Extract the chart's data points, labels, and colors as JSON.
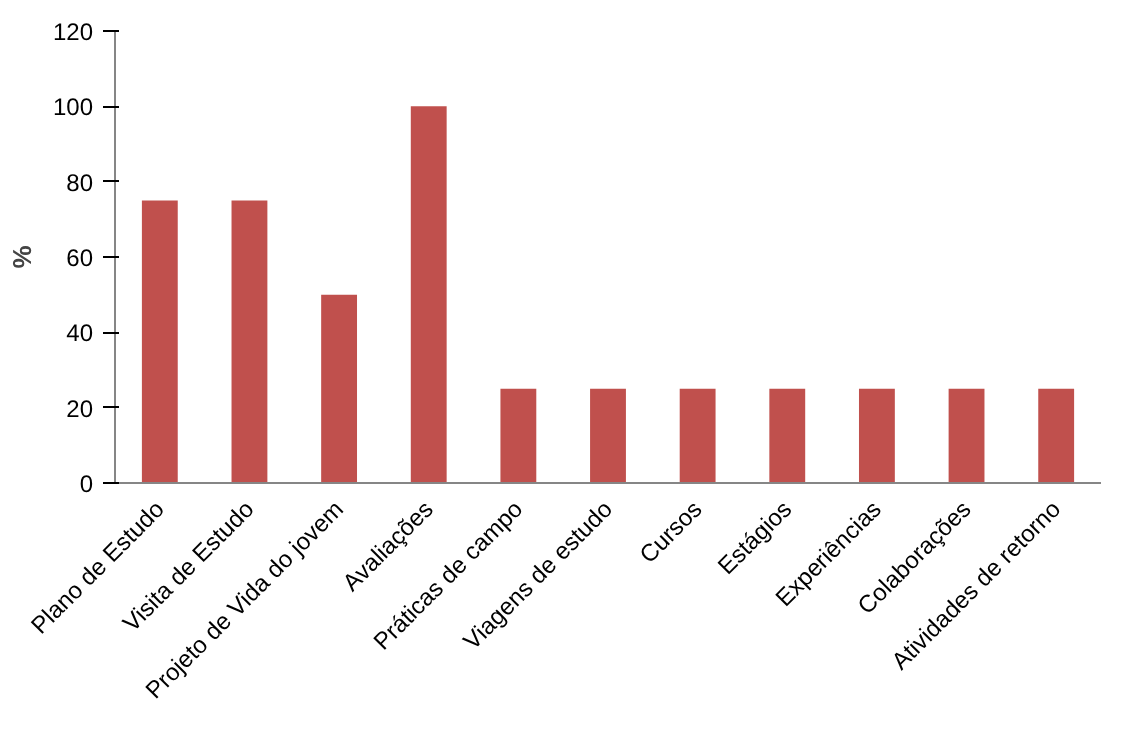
{
  "chart_data": {
    "type": "bar",
    "ylabel": "%",
    "categories": [
      "Plano de Estudo",
      "Visita de Estudo",
      "Projeto de Vida do jovem",
      "Avaliações",
      "Práticas de campo",
      "Viagens de estudo",
      "Cursos",
      "Estágios",
      "Experiências",
      "Colaborações",
      "Atividades de retorno"
    ],
    "values": [
      75,
      75,
      50,
      100,
      25,
      25,
      25,
      25,
      25,
      25,
      25
    ],
    "color": "#c0504d",
    "ylim": [
      0,
      120
    ],
    "yticks": [
      0,
      20,
      40,
      60,
      80,
      100,
      120
    ],
    "grid": false
  }
}
